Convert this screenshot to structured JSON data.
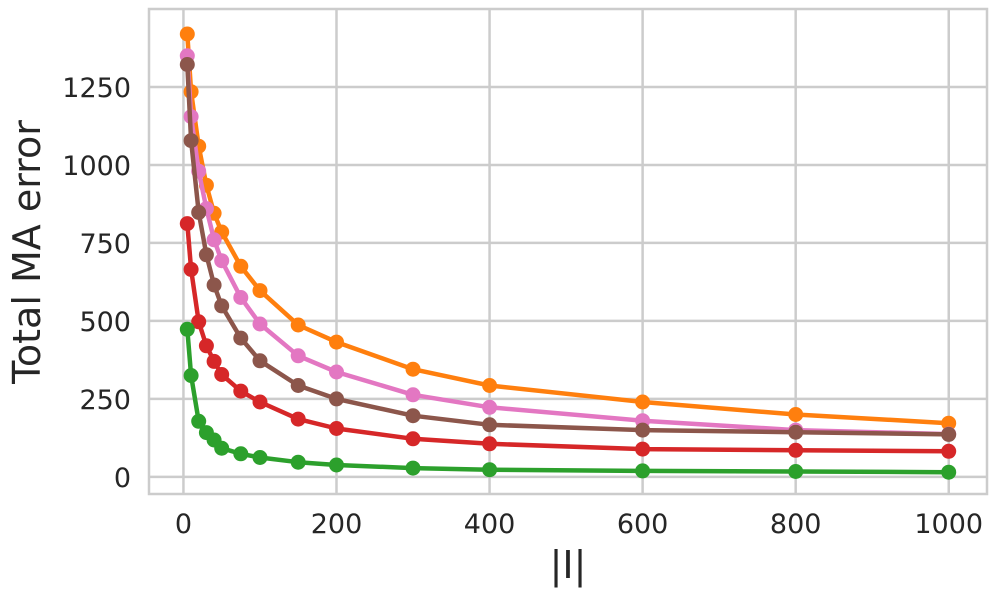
{
  "chart_data": {
    "type": "line",
    "xlabel": "|I|",
    "ylabel": "Total MA error",
    "xlim": [
      -45,
      1050
    ],
    "ylim": [
      -55,
      1500
    ],
    "xticks": [
      0,
      200,
      400,
      600,
      800,
      1000
    ],
    "yticks": [
      0,
      250,
      500,
      750,
      1000,
      1250
    ],
    "grid": true,
    "legend": "none",
    "x": [
      5,
      10,
      20,
      30,
      40,
      50,
      75,
      100,
      150,
      200,
      300,
      400,
      600,
      800,
      1000
    ],
    "series": [
      {
        "color": "#ff7f0e",
        "values": [
          1420,
          1235,
          1060,
          935,
          845,
          785,
          675,
          597,
          487,
          432,
          345,
          293,
          240,
          200,
          172
        ]
      },
      {
        "color": "#e377c2",
        "values": [
          1350,
          1155,
          980,
          860,
          760,
          693,
          575,
          490,
          388,
          336,
          263,
          223,
          180,
          150,
          137
        ]
      },
      {
        "color": "#8c564b",
        "values": [
          1322,
          1078,
          848,
          712,
          615,
          548,
          445,
          372,
          293,
          250,
          196,
          167,
          150,
          143,
          136
        ]
      },
      {
        "color": "#d62728",
        "values": [
          812,
          665,
          497,
          420,
          370,
          328,
          275,
          240,
          185,
          155,
          122,
          106,
          89,
          85,
          82
        ]
      },
      {
        "color": "#2ca02c",
        "values": [
          473,
          325,
          178,
          142,
          118,
          92,
          74,
          62,
          47,
          38,
          28,
          23,
          19,
          17,
          15
        ]
      }
    ]
  }
}
